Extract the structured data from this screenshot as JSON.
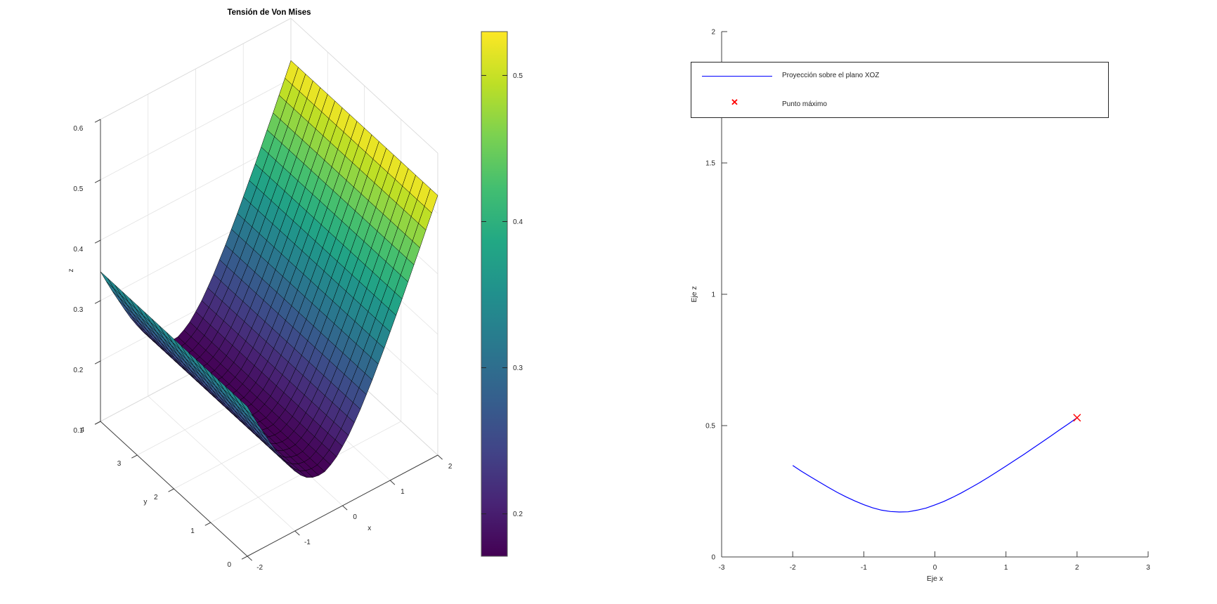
{
  "figure": {
    "background": "#ffffff",
    "text_color": "#262626",
    "grid_color": "#e3e3e3",
    "axis_color": "#404040",
    "line_color": "#0000ff",
    "marker_color": "#ff0000"
  },
  "chart_data": [
    {
      "type": "surface",
      "title": "Tensión de Von Mises",
      "xlabel": "x",
      "ylabel": "y",
      "zlabel": "z",
      "xlim": [
        -2,
        2
      ],
      "ylim": [
        0,
        4
      ],
      "zlim": [
        0.1,
        0.6
      ],
      "x_ticks": [
        -2,
        -1,
        0,
        1,
        2
      ],
      "y_ticks": [
        0,
        1,
        2,
        3,
        4
      ],
      "z_ticks": [
        0.1,
        0.2,
        0.3,
        0.4,
        0.5,
        0.6
      ],
      "grid": true,
      "colormap": "viridis",
      "clim": [
        0.171,
        0.53
      ],
      "colorbar_ticks": [
        0.2,
        0.3,
        0.4,
        0.5
      ],
      "surface_note": "z = f(x), constant along y",
      "profile_x": [
        -2,
        -1.875,
        -1.75,
        -1.625,
        -1.5,
        -1.375,
        -1.25,
        -1.125,
        -1,
        -0.875,
        -0.75,
        -0.625,
        -0.5,
        -0.375,
        -0.25,
        -0.125,
        0,
        0.125,
        0.25,
        0.375,
        0.5,
        0.625,
        0.75,
        0.875,
        1,
        1.125,
        1.25,
        1.375,
        1.5,
        1.625,
        1.75,
        1.875,
        2
      ],
      "profile_z": [
        0.348,
        0.326,
        0.305,
        0.285,
        0.265,
        0.246,
        0.229,
        0.213,
        0.199,
        0.187,
        0.178,
        0.173,
        0.171,
        0.172,
        0.178,
        0.186,
        0.198,
        0.211,
        0.227,
        0.244,
        0.263,
        0.282,
        0.303,
        0.324,
        0.346,
        0.368,
        0.39,
        0.413,
        0.436,
        0.459,
        0.483,
        0.506,
        0.53
      ],
      "y_cells": 20
    },
    {
      "type": "line",
      "xlabel": "Eje x",
      "ylabel": "Eje z",
      "xlim": [
        -3,
        3
      ],
      "ylim": [
        0,
        2
      ],
      "x_ticks": [
        -3,
        -2,
        -1,
        0,
        1,
        2,
        3
      ],
      "y_ticks": [
        0,
        0.5,
        1,
        1.5,
        2
      ],
      "grid": false,
      "legend_position": "north",
      "series": [
        {
          "name": "Proyección sobre el plano XOZ",
          "color": "#0000ff",
          "x": [
            -2,
            -1.875,
            -1.75,
            -1.625,
            -1.5,
            -1.375,
            -1.25,
            -1.125,
            -1,
            -0.875,
            -0.75,
            -0.625,
            -0.5,
            -0.375,
            -0.25,
            -0.125,
            0,
            0.125,
            0.25,
            0.375,
            0.5,
            0.625,
            0.75,
            0.875,
            1,
            1.125,
            1.25,
            1.375,
            1.5,
            1.625,
            1.75,
            1.875,
            2
          ],
          "y": [
            0.348,
            0.326,
            0.305,
            0.285,
            0.265,
            0.246,
            0.229,
            0.213,
            0.199,
            0.187,
            0.178,
            0.173,
            0.171,
            0.172,
            0.178,
            0.186,
            0.198,
            0.211,
            0.227,
            0.244,
            0.263,
            0.282,
            0.303,
            0.324,
            0.346,
            0.368,
            0.39,
            0.413,
            0.436,
            0.459,
            0.483,
            0.506,
            0.53
          ]
        }
      ],
      "points": [
        {
          "name": "Punto máximo",
          "x": 2,
          "y": 0.53,
          "color": "#ff0000",
          "marker": "x"
        }
      ]
    }
  ]
}
